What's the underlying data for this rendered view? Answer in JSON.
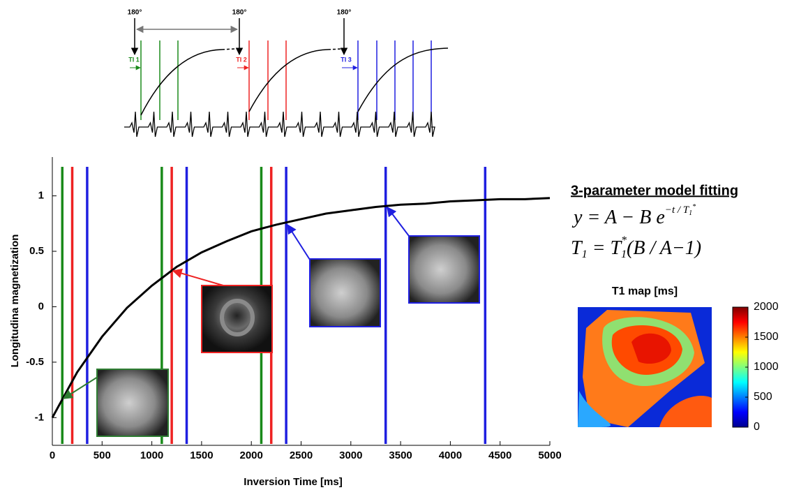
{
  "diagram": {
    "pulse_labels": [
      "180°",
      "180°",
      "180°"
    ],
    "ti_labels": [
      "TI 1",
      "TI 2",
      "TI 3"
    ]
  },
  "chart_data": {
    "type": "line",
    "xlabel": "Inversion Time [ms]",
    "ylabel": "Longitudina magnetization",
    "xlim": [
      0,
      5000
    ],
    "ylim": [
      -1.25,
      1.35
    ],
    "xticks": [
      0,
      500,
      1000,
      1500,
      2000,
      2500,
      3000,
      3500,
      4000,
      4500,
      5000
    ],
    "yticks": [
      -1,
      -0.5,
      0,
      0.5,
      1
    ],
    "grid": false,
    "series": [
      {
        "color": "#000000",
        "x": [
          0,
          250,
          500,
          750,
          1000,
          1250,
          1500,
          1750,
          2000,
          2250,
          2500,
          2750,
          3000,
          3250,
          3500,
          3750,
          4000,
          4250,
          4500,
          4750,
          5000
        ],
        "values": [
          -1,
          -0.59,
          -0.27,
          -0.01,
          0.19,
          0.36,
          0.49,
          0.59,
          0.68,
          0.74,
          0.79,
          0.84,
          0.87,
          0.9,
          0.92,
          0.93,
          0.95,
          0.96,
          0.97,
          0.97,
          0.98
        ]
      }
    ],
    "sample_lines": [
      {
        "color": "#1a8a1a",
        "x": [
          100,
          1100,
          2100
        ]
      },
      {
        "color": "#ee2222",
        "x": [
          200,
          1200,
          2200
        ]
      },
      {
        "color": "#1f1fe0",
        "x": [
          350,
          1350,
          2350,
          3350,
          4350
        ]
      }
    ]
  },
  "model": {
    "title": "3-parameter model fitting",
    "equation_1": [
      "y = A − B e",
      "−t / T",
      "1",
      "*"
    ],
    "equation_2": [
      "T",
      "1",
      " = T",
      "1",
      "*",
      "(B / A−1)"
    ]
  },
  "colorbar": {
    "title": "T1 map [ms]",
    "lim": [
      0,
      2000
    ],
    "ticks": [
      0,
      500,
      1000,
      1500,
      2000
    ]
  }
}
